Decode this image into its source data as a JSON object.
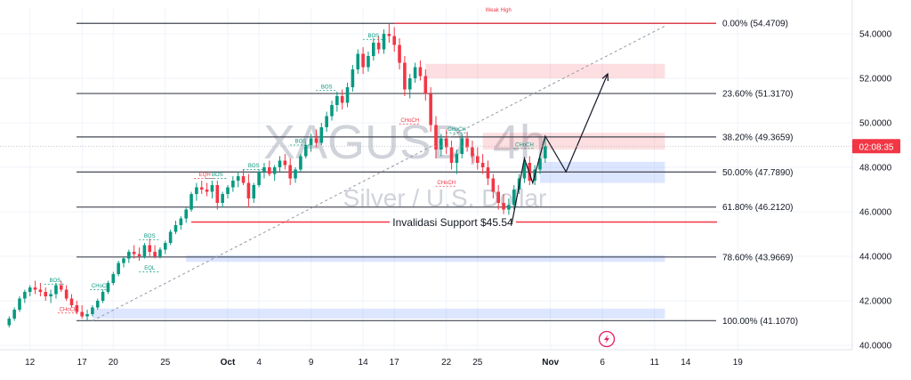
{
  "chart_data": {
    "type": "candlestick",
    "symbol": "XAGUSD, 4h",
    "subtitle": "Silver / U.S. Dollar",
    "ylim": [
      39.8,
      55.2
    ],
    "y_ticks": [
      {
        "value": 54,
        "label": "54.0000"
      },
      {
        "value": 52,
        "label": "52.0000"
      },
      {
        "value": 50,
        "label": "50.0000"
      },
      {
        "value": 48,
        "label": "48.0000"
      },
      {
        "value": 46,
        "label": "46.0000"
      },
      {
        "value": 44,
        "label": "44.0000"
      },
      {
        "value": 42,
        "label": "42.0000"
      },
      {
        "value": 40,
        "label": "40.0000"
      }
    ],
    "x_ticks": [
      {
        "day": -18,
        "label": "12"
      },
      {
        "day": -13,
        "label": "17"
      },
      {
        "day": -10,
        "label": "20"
      },
      {
        "day": -5,
        "label": "25"
      },
      {
        "day": 1,
        "label": "Oct"
      },
      {
        "day": 4,
        "label": "4"
      },
      {
        "day": 9,
        "label": "9"
      },
      {
        "day": 14,
        "label": "14"
      },
      {
        "day": 17,
        "label": "17"
      },
      {
        "day": 22,
        "label": "22"
      },
      {
        "day": 25,
        "label": "25"
      },
      {
        "day": 32,
        "label": "Nov"
      },
      {
        "day": 37,
        "label": "6"
      },
      {
        "day": 42,
        "label": "11"
      },
      {
        "day": 45,
        "label": "14"
      },
      {
        "day": 50,
        "label": "19"
      }
    ],
    "current_price": {
      "value": 48.95,
      "label": "02:08:35"
    },
    "fib_levels": [
      {
        "value": 54.4709,
        "label": "0.00% (54.4709)"
      },
      {
        "value": 51.317,
        "label": "23.60% (51.3170)"
      },
      {
        "value": 49.3659,
        "label": "38.20% (49.3659)"
      },
      {
        "value": 47.789,
        "label": "50.00% (47.7890)"
      },
      {
        "value": 46.212,
        "label": "61.80% (46.2120)"
      },
      {
        "value": 43.9669,
        "label": "78.60% (43.9669)"
      },
      {
        "value": 41.107,
        "label": "100.00% (41.1070)"
      }
    ],
    "support_line": {
      "value": 45.54,
      "label": "Invalidasi Support $45.54"
    },
    "zones": [
      {
        "kind": "supply",
        "day_from": 20,
        "day_to": 43,
        "low": 52.0,
        "high": 52.65
      },
      {
        "kind": "supply",
        "day_from": 25.5,
        "day_to": 43,
        "low": 48.8,
        "high": 49.55
      },
      {
        "kind": "demand",
        "day_from": 31,
        "day_to": 43,
        "low": 47.3,
        "high": 48.25
      },
      {
        "kind": "demand",
        "day_from": -3,
        "day_to": 43,
        "low": 43.75,
        "high": 44.05
      },
      {
        "kind": "demand",
        "day_from": -12,
        "day_to": 43,
        "low": 41.2,
        "high": 41.65
      }
    ],
    "annotations": [
      {
        "text": "Weak High",
        "day": 27,
        "value": 55.0,
        "color": "#f23645"
      },
      {
        "text": "BOS",
        "day": -15.6,
        "value": 42.85,
        "color": "#089981"
      },
      {
        "text": "CHoCH",
        "day": -14.3,
        "value": 41.55,
        "color": "#f23645"
      },
      {
        "text": "CHoCH",
        "day": -11.2,
        "value": 42.6,
        "color": "#089981"
      },
      {
        "text": "BOS",
        "day": -6.5,
        "value": 44.85,
        "color": "#089981"
      },
      {
        "text": "EQL",
        "day": -6.5,
        "value": 43.4,
        "color": "#089981"
      },
      {
        "text": "EQH",
        "day": -1.2,
        "value": 47.6,
        "color": "#f23645"
      },
      {
        "text": "BOS",
        "day": 0.0,
        "value": 47.6,
        "color": "#089981"
      },
      {
        "text": "BOS",
        "day": 3.5,
        "value": 48.0,
        "color": "#089981"
      },
      {
        "text": "BOS",
        "day": 8.0,
        "value": 49.1,
        "color": "#089981"
      },
      {
        "text": "BOS",
        "day": 10.5,
        "value": 51.55,
        "color": "#089981"
      },
      {
        "text": "BOS",
        "day": 15.0,
        "value": 53.85,
        "color": "#089981"
      },
      {
        "text": "CHoCH",
        "day": 18.5,
        "value": 50.05,
        "color": "#f23645"
      },
      {
        "text": "CHoCH",
        "day": 23.0,
        "value": 49.65,
        "color": "#089981"
      },
      {
        "text": "CHoCH",
        "day": 22.0,
        "value": 47.25,
        "color": "#f23645"
      },
      {
        "text": "CHoCH",
        "day": 29.5,
        "value": 48.95,
        "color": "#089981"
      }
    ],
    "trendline": {
      "from": {
        "day": -12,
        "value": 41.1
      },
      "to": {
        "day": 43,
        "value": 54.35
      }
    },
    "projection_path": [
      {
        "day": 28.3,
        "value": 45.5
      },
      {
        "day": 29.5,
        "value": 48.4
      },
      {
        "day": 30.3,
        "value": 47.3
      },
      {
        "day": 31.5,
        "value": 49.4
      },
      {
        "day": 33.5,
        "value": 47.8
      },
      {
        "day": 37.5,
        "value": 52.2
      }
    ],
    "candles": [
      [
        -20,
        40.9,
        41.3,
        40.8,
        41.2
      ],
      [
        -19.5,
        41.2,
        41.7,
        41.1,
        41.6
      ],
      [
        -19,
        41.6,
        42.2,
        41.5,
        42.1
      ],
      [
        -18.5,
        42.1,
        42.5,
        41.9,
        42.4
      ],
      [
        -18,
        42.4,
        42.7,
        42.2,
        42.6
      ],
      [
        -17.5,
        42.6,
        42.9,
        42.3,
        42.5
      ],
      [
        -17,
        42.5,
        42.8,
        42.2,
        42.4
      ],
      [
        -16.5,
        42.4,
        42.6,
        42.0,
        42.2
      ],
      [
        -16,
        42.2,
        42.5,
        41.9,
        42.3
      ],
      [
        -15.5,
        42.3,
        42.8,
        42.1,
        42.7
      ],
      [
        -15,
        42.7,
        42.9,
        42.4,
        42.5
      ],
      [
        -14.5,
        42.5,
        42.7,
        42.0,
        42.1
      ],
      [
        -14,
        42.1,
        42.3,
        41.7,
        41.8
      ],
      [
        -13.5,
        41.8,
        42.0,
        41.4,
        41.5
      ],
      [
        -13,
        41.5,
        41.8,
        41.2,
        41.3
      ],
      [
        -12.5,
        41.3,
        41.6,
        41.1,
        41.4
      ],
      [
        -12,
        41.4,
        41.8,
        41.3,
        41.7
      ],
      [
        -11.5,
        41.7,
        42.1,
        41.6,
        42.0
      ],
      [
        -11,
        42.0,
        42.5,
        41.9,
        42.4
      ],
      [
        -10.5,
        42.4,
        42.9,
        42.3,
        42.8
      ],
      [
        -10,
        42.8,
        43.3,
        42.7,
        43.2
      ],
      [
        -9.5,
        43.2,
        43.8,
        43.1,
        43.7
      ],
      [
        -9,
        43.7,
        44.0,
        43.5,
        43.9
      ],
      [
        -8.5,
        43.9,
        44.3,
        43.7,
        44.2
      ],
      [
        -8,
        44.2,
        44.5,
        43.9,
        44.1
      ],
      [
        -7.5,
        44.1,
        44.4,
        43.8,
        44.0
      ],
      [
        -7,
        44.0,
        44.6,
        43.9,
        44.5
      ],
      [
        -6.5,
        44.5,
        44.8,
        44.0,
        44.2
      ],
      [
        -6,
        44.2,
        44.5,
        43.9,
        44.0
      ],
      [
        -5.5,
        44.0,
        44.4,
        43.9,
        44.3
      ],
      [
        -5,
        44.3,
        44.7,
        44.1,
        44.6
      ],
      [
        -4.5,
        44.6,
        45.2,
        44.5,
        45.1
      ],
      [
        -4,
        45.1,
        45.6,
        45.0,
        45.4
      ],
      [
        -3.5,
        45.4,
        45.8,
        45.2,
        45.7
      ],
      [
        -3,
        45.7,
        46.2,
        45.5,
        46.1
      ],
      [
        -2.5,
        46.1,
        46.9,
        46.0,
        46.8
      ],
      [
        -2,
        46.8,
        47.3,
        46.5,
        47.1
      ],
      [
        -1.5,
        47.1,
        47.4,
        46.8,
        47.0
      ],
      [
        -1,
        47.0,
        47.3,
        46.7,
        46.9
      ],
      [
        -0.5,
        46.9,
        47.4,
        46.6,
        47.2
      ],
      [
        0,
        47.2,
        47.4,
        46.1,
        46.4
      ],
      [
        0.5,
        46.4,
        46.9,
        46.2,
        46.8
      ],
      [
        1,
        46.8,
        47.2,
        46.6,
        47.1
      ],
      [
        1.5,
        47.1,
        47.6,
        46.9,
        47.4
      ],
      [
        2,
        47.4,
        47.8,
        47.1,
        47.6
      ],
      [
        2.5,
        47.6,
        47.9,
        47.2,
        47.3
      ],
      [
        3,
        47.3,
        47.7,
        46.2,
        46.6
      ],
      [
        3.5,
        46.6,
        47.3,
        46.4,
        47.2
      ],
      [
        4,
        47.2,
        47.9,
        47.1,
        47.8
      ],
      [
        4.5,
        47.8,
        48.2,
        47.5,
        48.0
      ],
      [
        5,
        48.0,
        48.3,
        47.6,
        47.7
      ],
      [
        5.5,
        47.7,
        48.1,
        47.4,
        48.0
      ],
      [
        6,
        48.0,
        48.5,
        47.8,
        48.3
      ],
      [
        6.5,
        48.3,
        48.6,
        47.9,
        48.1
      ],
      [
        7,
        48.1,
        48.4,
        47.2,
        47.5
      ],
      [
        7.5,
        47.5,
        48.0,
        47.3,
        47.9
      ],
      [
        8,
        47.9,
        48.6,
        47.8,
        48.5
      ],
      [
        8.5,
        48.5,
        49.1,
        48.4,
        49.0
      ],
      [
        9,
        49.0,
        49.5,
        48.7,
        49.3
      ],
      [
        9.5,
        49.3,
        49.7,
        48.9,
        49.1
      ],
      [
        10,
        49.1,
        50.0,
        49.0,
        49.8
      ],
      [
        10.5,
        49.8,
        50.5,
        49.6,
        50.3
      ],
      [
        11,
        50.3,
        51.0,
        50.1,
        50.8
      ],
      [
        11.5,
        50.8,
        51.4,
        50.5,
        51.2
      ],
      [
        12,
        51.2,
        51.5,
        50.6,
        50.9
      ],
      [
        12.5,
        50.9,
        51.8,
        50.7,
        51.6
      ],
      [
        13,
        51.6,
        52.6,
        51.4,
        52.4
      ],
      [
        13.5,
        52.4,
        53.3,
        52.2,
        53.1
      ],
      [
        14,
        53.1,
        53.4,
        52.2,
        52.5
      ],
      [
        14.5,
        52.5,
        53.2,
        52.3,
        53.0
      ],
      [
        15,
        53.0,
        53.8,
        52.8,
        53.6
      ],
      [
        15.5,
        53.6,
        53.9,
        53.1,
        53.3
      ],
      [
        16,
        53.3,
        54.2,
        53.1,
        54.0
      ],
      [
        16.5,
        54.0,
        54.47,
        53.6,
        53.9
      ],
      [
        17,
        53.9,
        54.3,
        53.2,
        53.5
      ],
      [
        17.5,
        53.5,
        53.8,
        52.4,
        52.7
      ],
      [
        18,
        52.7,
        53.0,
        51.2,
        51.5
      ],
      [
        18.5,
        51.5,
        52.2,
        51.1,
        52.0
      ],
      [
        19,
        52.0,
        52.7,
        51.8,
        52.5
      ],
      [
        19.5,
        52.5,
        52.8,
        51.9,
        52.1
      ],
      [
        20,
        52.1,
        52.4,
        51.0,
        51.3
      ],
      [
        20.5,
        51.3,
        51.6,
        49.6,
        49.9
      ],
      [
        21,
        49.9,
        50.3,
        48.4,
        48.8
      ],
      [
        21.5,
        48.8,
        49.5,
        48.5,
        49.3
      ],
      [
        22,
        49.3,
        49.7,
        48.6,
        48.9
      ],
      [
        22.5,
        48.9,
        49.2,
        47.9,
        48.2
      ],
      [
        23,
        48.2,
        48.8,
        47.7,
        48.6
      ],
      [
        23.5,
        48.6,
        49.5,
        48.4,
        49.3
      ],
      [
        24,
        49.3,
        49.6,
        48.7,
        48.9
      ],
      [
        24.5,
        48.9,
        49.2,
        48.2,
        48.5
      ],
      [
        25,
        48.5,
        48.9,
        47.9,
        48.2
      ],
      [
        25.5,
        48.2,
        48.6,
        47.7,
        48.0
      ],
      [
        26,
        48.0,
        48.3,
        47.2,
        47.5
      ],
      [
        26.5,
        47.5,
        47.7,
        46.6,
        46.9
      ],
      [
        27,
        46.9,
        47.2,
        46.1,
        46.4
      ],
      [
        27.5,
        46.4,
        46.8,
        45.9,
        46.1
      ],
      [
        28,
        46.1,
        46.6,
        45.5,
        46.3
      ],
      [
        28.5,
        46.3,
        47.2,
        46.1,
        47.0
      ],
      [
        29,
        47.0,
        47.7,
        46.8,
        47.5
      ],
      [
        29.5,
        47.5,
        48.4,
        47.3,
        48.2
      ],
      [
        30,
        48.2,
        48.5,
        47.2,
        47.4
      ],
      [
        30.5,
        47.4,
        48.1,
        47.2,
        47.9
      ],
      [
        31,
        47.9,
        48.6,
        47.7,
        48.4
      ],
      [
        31.5,
        48.4,
        49.3,
        48.2,
        48.95
      ]
    ]
  }
}
